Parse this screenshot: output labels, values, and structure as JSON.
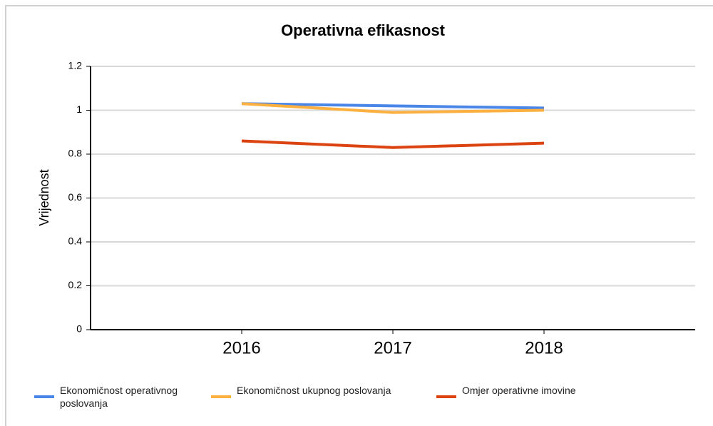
{
  "chart_data": {
    "type": "line",
    "title": "Operativna efikasnost",
    "y_label": "Vrijednost",
    "categories": [
      "2016",
      "2017",
      "2018"
    ],
    "series": [
      {
        "name": "Ekonomičnost operativnog poslovanja",
        "color": "#4a86e8",
        "values": [
          1.03,
          1.02,
          1.01
        ]
      },
      {
        "name": "Ekonomičnost ukupnog poslovanja",
        "color": "#fbb040",
        "values": [
          1.03,
          0.99,
          1.0
        ]
      },
      {
        "name": "Omjer operativne imovine",
        "color": "#db4411",
        "values": [
          0.86,
          0.83,
          0.85
        ]
      }
    ],
    "ylim": [
      0,
      1.2
    ],
    "yticks": [
      0,
      0.2,
      0.4,
      0.6,
      0.8,
      1,
      1.2
    ],
    "grid": true,
    "legend": "bottom"
  }
}
